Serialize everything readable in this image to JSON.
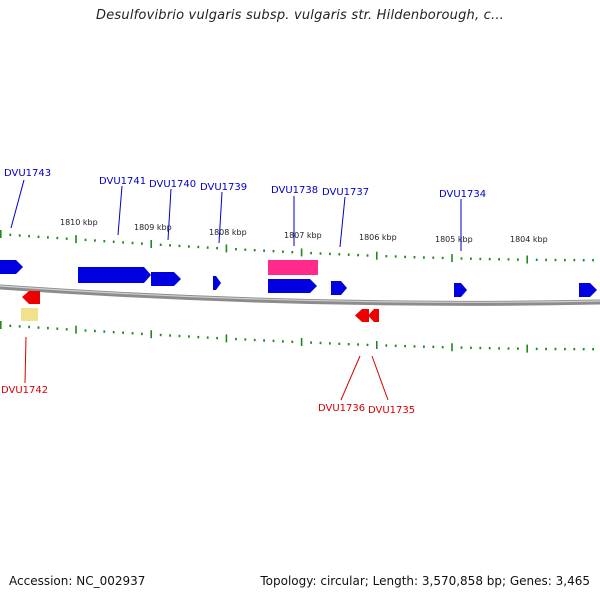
{
  "title": "Desulfovibrio vulgaris subsp. vulgaris str. Hildenborough, c...",
  "footer": {
    "accession": "Accession: NC_002937",
    "summary": "Topology: circular; Length: 3,570,858 bp; Genes: 3,465"
  },
  "colors": {
    "label_forward": "#0000c8",
    "label_reverse": "#d80000",
    "gene_forward": "#0000e0",
    "gene_reverse": "#ee0000",
    "gene_pink": "#ff2a8c",
    "gene_yellow": "#f0e18a",
    "tick": "#1f8a1f",
    "backbone": "#8c8c8c"
  },
  "scale": {
    "labels": [
      "1810 kbp",
      "1809 kbp",
      "1808 kbp",
      "1807 kbp",
      "1806 kbp",
      "1805 kbp",
      "1804 kbp"
    ]
  },
  "gene_labels": {
    "forward": [
      "DVU1743",
      "DVU1741",
      "DVU1740",
      "DVU1739",
      "DVU1738",
      "DVU1737",
      "DVU1734"
    ],
    "reverse": [
      "DVU1742",
      "DVU1736",
      "DVU1735"
    ]
  }
}
